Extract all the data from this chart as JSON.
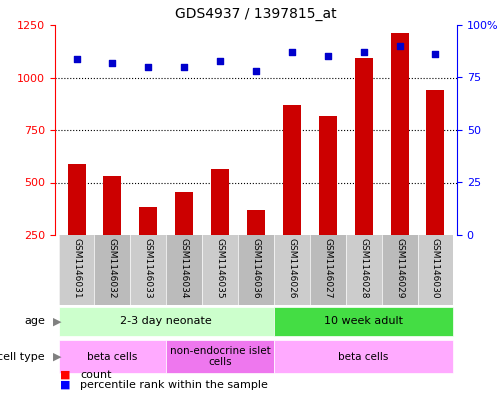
{
  "title": "GDS4937 / 1397815_at",
  "samples": [
    "GSM1146031",
    "GSM1146032",
    "GSM1146033",
    "GSM1146034",
    "GSM1146035",
    "GSM1146036",
    "GSM1146026",
    "GSM1146027",
    "GSM1146028",
    "GSM1146029",
    "GSM1146030"
  ],
  "counts": [
    590,
    530,
    385,
    455,
    565,
    370,
    870,
    815,
    1095,
    1210,
    940
  ],
  "percentiles": [
    84,
    82,
    80,
    80,
    83,
    78,
    87,
    85,
    87,
    90,
    86
  ],
  "ylim_left": [
    250,
    1250
  ],
  "ylim_right": [
    0,
    100
  ],
  "yticks_left": [
    250,
    500,
    750,
    1000,
    1250
  ],
  "yticks_right": [
    0,
    25,
    50,
    75,
    100
  ],
  "bar_color": "#cc0000",
  "dot_color": "#0000cc",
  "grid_color": "#000000",
  "age_groups": [
    {
      "label": "2-3 day neonate",
      "start": 0,
      "end": 6,
      "color": "#ccffcc"
    },
    {
      "label": "10 week adult",
      "start": 6,
      "end": 11,
      "color": "#44dd44"
    }
  ],
  "cell_type_groups": [
    {
      "label": "beta cells",
      "start": 0,
      "end": 3,
      "color": "#ffaaff"
    },
    {
      "label": "non-endocrine islet\ncells",
      "start": 3,
      "end": 6,
      "color": "#ee77ee"
    },
    {
      "label": "beta cells",
      "start": 6,
      "end": 11,
      "color": "#ffaaff"
    }
  ],
  "bg_color": "#ffffff",
  "plot_bg": "#ffffff",
  "sample_bg": "#cccccc",
  "figw": 4.99,
  "figh": 3.93,
  "dpi": 100
}
